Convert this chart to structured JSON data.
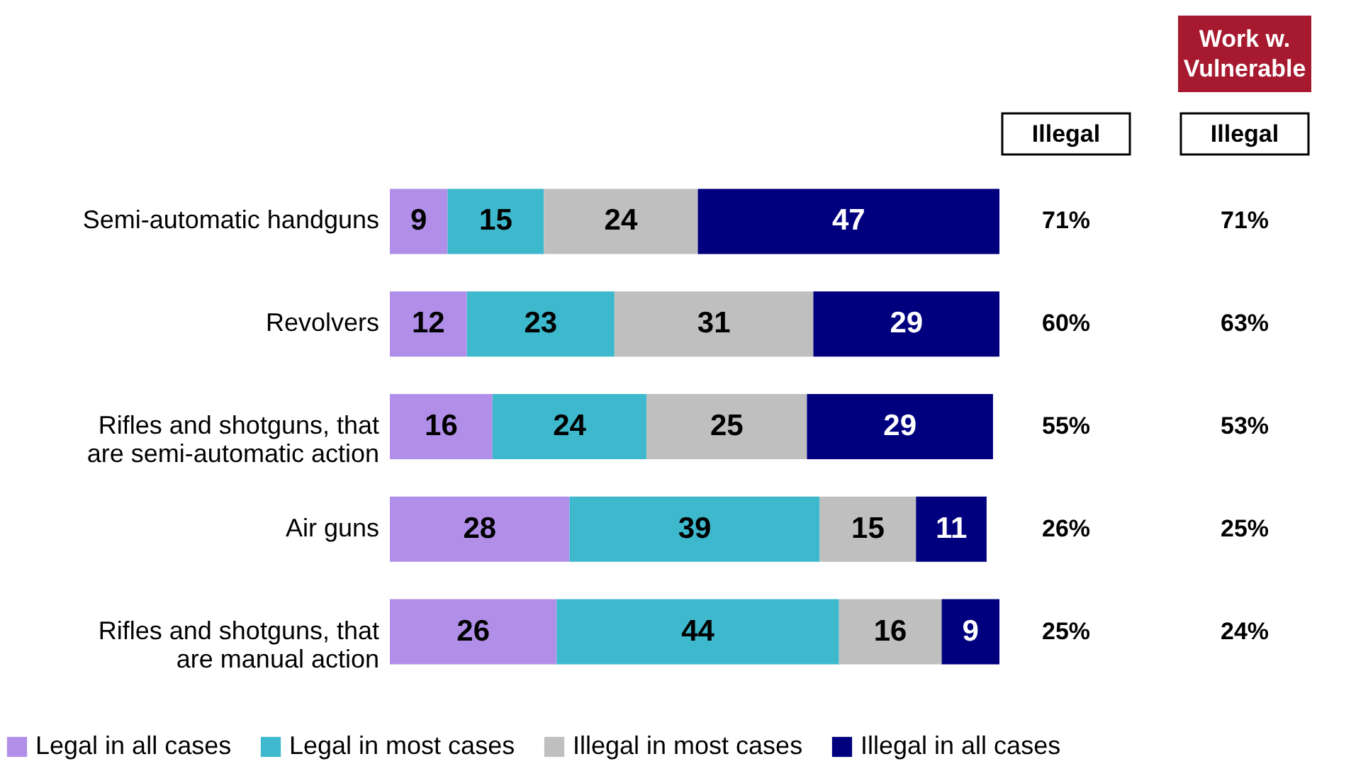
{
  "chart_data": {
    "type": "bar",
    "orientation": "horizontal",
    "stacked": true,
    "data_labels": true,
    "legend": "bottom",
    "grid": false,
    "tick_labels": "y",
    "xlim": [
      0,
      95
    ],
    "categories": [
      "Semi-automatic handguns",
      "Revolvers",
      "Rifles and shotguns, that are semi-automatic action",
      "Air guns",
      "Rifles and shotguns, that are manual action"
    ],
    "series": [
      {
        "name": "Legal in all cases",
        "color": "#b18fe8",
        "values": [
          9,
          12,
          16,
          28,
          26
        ]
      },
      {
        "name": "Legal in most cases",
        "color": "#3db8cc",
        "values": [
          15,
          23,
          24,
          39,
          44
        ]
      },
      {
        "name": "Illegal in most cases",
        "color": "#bfbfbf",
        "values": [
          24,
          31,
          25,
          15,
          16
        ]
      },
      {
        "name": "Illegal in all cases",
        "color": "#00007f",
        "values": [
          47,
          29,
          29,
          11,
          9
        ]
      }
    ],
    "annotations": [
      "Illegal",
      "Illegal",
      "Work w. Vulnerable",
      "71%",
      "60%",
      "55%",
      "26%",
      "25%",
      "71%",
      "63%",
      "53%",
      "25%",
      "24%"
    ]
  }
}
